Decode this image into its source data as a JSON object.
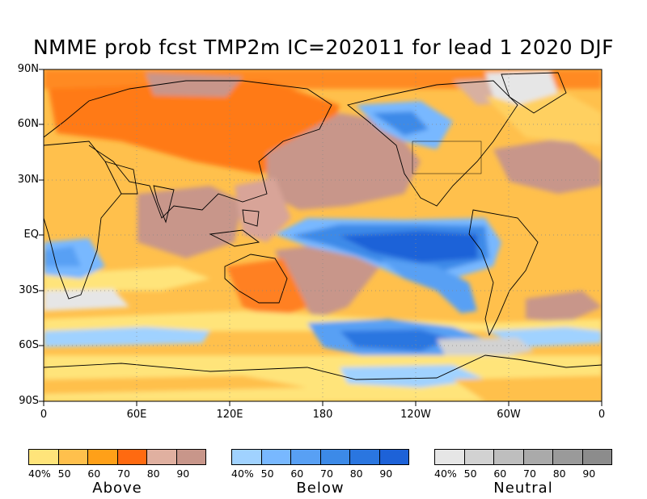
{
  "title": "NMME prob fcst TMP2m IC=202011 for lead 1 2020 DJF",
  "lat_labels": [
    "90N",
    "60N",
    "30N",
    "EQ",
    "30S",
    "60S",
    "90S"
  ],
  "lon_labels": [
    "0",
    "60E",
    "120E",
    "180",
    "120W",
    "60W",
    "0"
  ],
  "legends": [
    {
      "name": "Above",
      "ticks": [
        "40%",
        "50",
        "60",
        "70",
        "80",
        "90"
      ],
      "colors": [
        "#ffe47a",
        "#ffc04c",
        "#ffa018",
        "#ff6a10",
        "#e0b0a0",
        "#c8968a"
      ]
    },
    {
      "name": "Below",
      "ticks": [
        "40%",
        "50",
        "60",
        "70",
        "80",
        "90"
      ],
      "colors": [
        "#a0d2ff",
        "#78b8ff",
        "#58a0f4",
        "#3c8ae8",
        "#2a76e0",
        "#1d62d8"
      ]
    },
    {
      "name": "Neutral",
      "ticks": [
        "40%",
        "50",
        "60",
        "70",
        "80",
        "90"
      ],
      "colors": [
        "#e6e6e6",
        "#d2d2d2",
        "#bebebe",
        "#aaaaaa",
        "#9a9a9a",
        "#8c8c8c"
      ]
    }
  ]
}
